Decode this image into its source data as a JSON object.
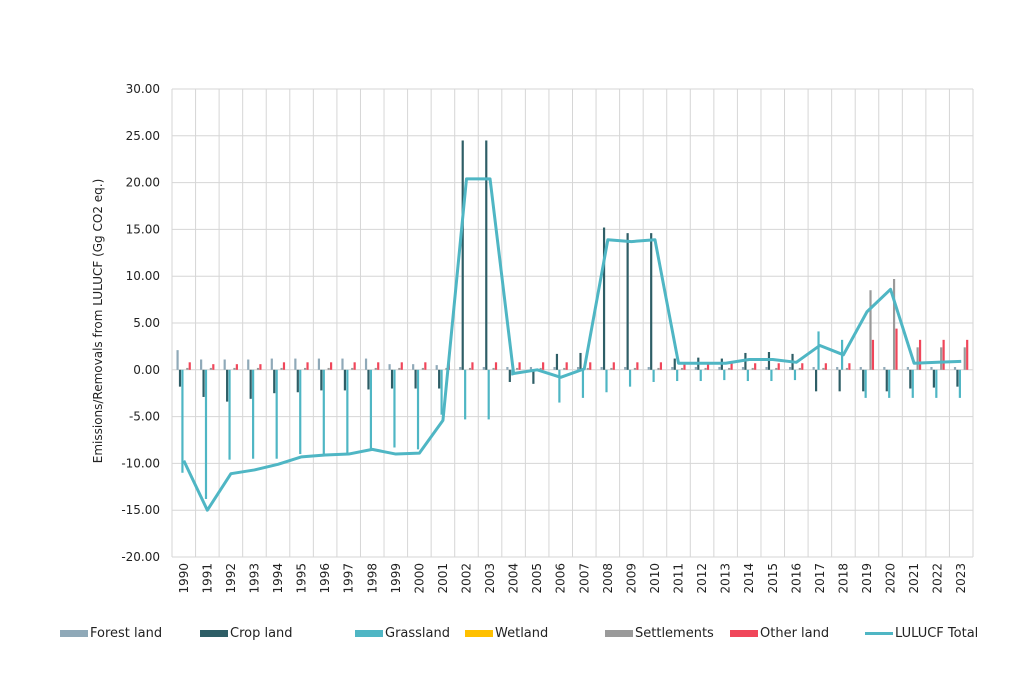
{
  "chart_data": {
    "type": "bar",
    "ylabel": "Emissions/Removals from LULUCF (Gg CO2 eq.)",
    "ylim": [
      -20,
      30
    ],
    "yticks": [
      "30.00",
      "25.00",
      "20.00",
      "15.00",
      "10.00",
      "5.00",
      "0.00",
      "-5.00",
      "-10.00",
      "-15.00",
      "-20.00"
    ],
    "grid": true,
    "legend_position": "bottom",
    "categories": [
      "1990",
      "1991",
      "1992",
      "1993",
      "1994",
      "1995",
      "1996",
      "1997",
      "1998",
      "1999",
      "2000",
      "2001",
      "2002",
      "2003",
      "2004",
      "2005",
      "2006",
      "2007",
      "2008",
      "2009",
      "2010",
      "2011",
      "2012",
      "2013",
      "2014",
      "2015",
      "2016",
      "2017",
      "2018",
      "2019",
      "2020",
      "2021",
      "2022",
      "2023"
    ],
    "series": [
      {
        "name": "Forest land",
        "color": "#8fa9b8",
        "kind": "bar",
        "values": [
          2.1,
          1.1,
          1.1,
          1.1,
          1.2,
          1.2,
          1.2,
          1.2,
          1.2,
          0.6,
          0.6,
          0.5,
          0.3,
          0.3,
          0.3,
          0.3,
          0.3,
          0.3,
          0.3,
          0.3,
          0.3,
          0.3,
          0.3,
          0.3,
          0.3,
          0.3,
          0.3,
          0.3,
          0.3,
          0.3,
          0.3,
          0.3,
          0.3,
          0.3
        ]
      },
      {
        "name": "Crop land",
        "color": "#2e5e66",
        "kind": "bar",
        "values": [
          -1.8,
          -2.9,
          -3.4,
          -3.1,
          -2.5,
          -2.4,
          -2.2,
          -2.2,
          -2.1,
          -2.0,
          -2.0,
          -2.0,
          24.5,
          24.5,
          -1.3,
          -1.5,
          1.7,
          1.8,
          15.2,
          14.6,
          14.6,
          1.2,
          1.3,
          1.2,
          1.8,
          1.9,
          1.7,
          -2.3,
          -2.3,
          -2.3,
          -2.3,
          -2.0,
          -1.9,
          -1.8
        ]
      },
      {
        "name": "Grassland",
        "color": "#4fb6c4",
        "kind": "bar",
        "values": [
          -11.0,
          -13.8,
          -9.6,
          -9.5,
          -9.5,
          -9.0,
          -9.0,
          -8.9,
          -8.5,
          -8.3,
          -8.5,
          -4.8,
          -5.3,
          -5.3,
          -0.6,
          0.0,
          -3.5,
          -3.0,
          -2.4,
          -1.8,
          -1.3,
          -1.2,
          -1.2,
          -1.1,
          -1.2,
          -1.2,
          -1.1,
          4.1,
          3.2,
          -3.0,
          -3.0,
          -3.0,
          -3.0,
          -3.0
        ]
      },
      {
        "name": "Wetland",
        "color": "#ffc000",
        "kind": "bar",
        "values": [
          0,
          0,
          0,
          0,
          0,
          0,
          0,
          0,
          0,
          0,
          0,
          0,
          0,
          0,
          0,
          0,
          0,
          0,
          0,
          0,
          0,
          0,
          0,
          0,
          0,
          0,
          0,
          0,
          0,
          0,
          0,
          0,
          0,
          0
        ]
      },
      {
        "name": "Settlements",
        "color": "#9a9a9a",
        "kind": "bar",
        "values": [
          0.2,
          0.2,
          0.2,
          0.2,
          0.2,
          0.2,
          0.2,
          0.2,
          0.2,
          0.2,
          0.2,
          0.2,
          0.2,
          0.2,
          0.2,
          0.2,
          0.2,
          0.2,
          0.2,
          0.2,
          0.2,
          0.2,
          0.2,
          0.2,
          0.2,
          0.2,
          0.2,
          0.2,
          0.2,
          8.5,
          9.7,
          2.4,
          2.4,
          2.4
        ]
      },
      {
        "name": "Other land",
        "color": "#f0465a",
        "kind": "bar",
        "values": [
          0.8,
          0.6,
          0.6,
          0.6,
          0.8,
          0.8,
          0.8,
          0.8,
          0.8,
          0.8,
          0.8,
          0.8,
          0.8,
          0.8,
          0.8,
          0.8,
          0.8,
          0.8,
          0.8,
          0.8,
          0.8,
          0.7,
          0.7,
          0.7,
          0.7,
          0.7,
          0.7,
          0.7,
          0.7,
          3.2,
          4.4,
          3.2,
          3.2,
          3.2
        ]
      },
      {
        "name": "LULUCF Total",
        "color": "#4fb6c4",
        "kind": "line",
        "values": [
          -9.7,
          -15.0,
          -11.1,
          -10.7,
          -10.1,
          -9.3,
          -9.1,
          -9.0,
          -8.5,
          -9.0,
          -8.9,
          -5.4,
          20.4,
          20.4,
          -0.4,
          0.0,
          -0.8,
          0.1,
          13.9,
          13.7,
          13.9,
          0.7,
          0.7,
          0.7,
          1.1,
          1.1,
          0.8,
          2.6,
          1.6,
          6.2,
          8.6,
          0.7,
          0.8,
          0.9
        ]
      }
    ]
  }
}
